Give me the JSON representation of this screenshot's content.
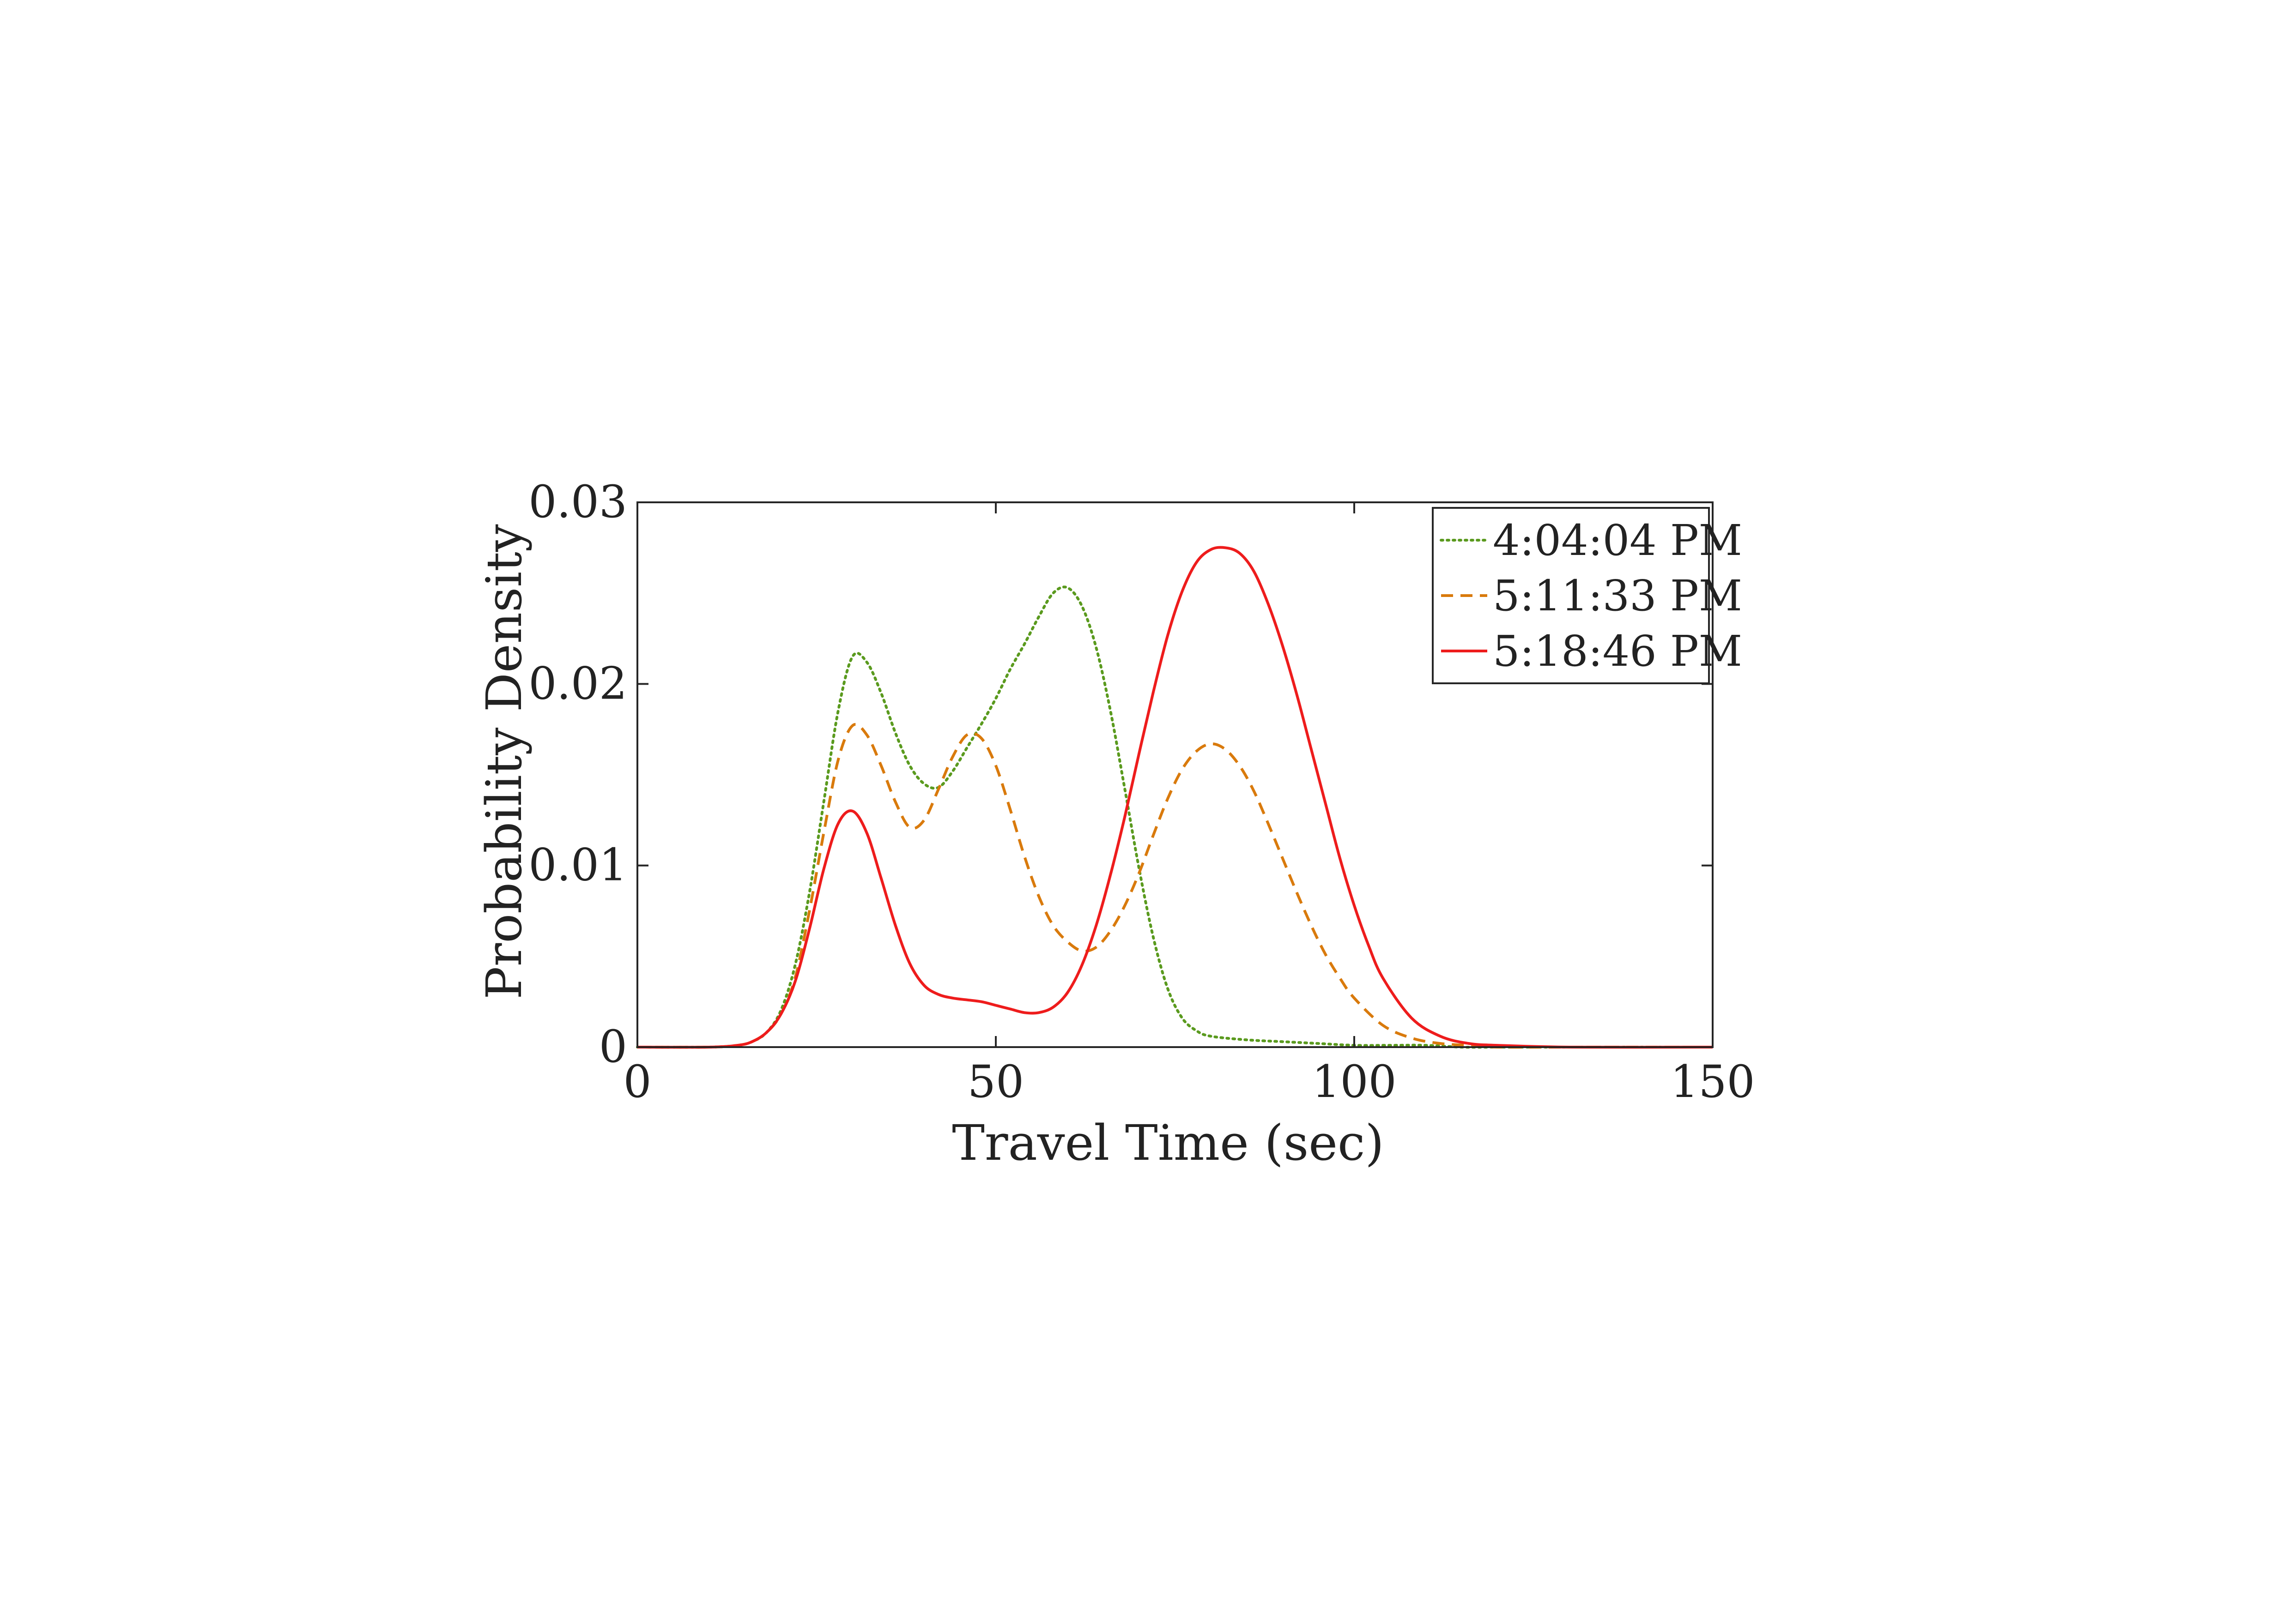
{
  "chart_data": {
    "type": "line",
    "xlabel": "Travel Time (sec)",
    "ylabel": "Probability Density",
    "xlim": [
      0,
      150
    ],
    "ylim": [
      0,
      0.03
    ],
    "xticks": [
      0,
      50,
      100,
      150
    ],
    "xtick_labels": [
      "0",
      "50",
      "100",
      "150"
    ],
    "yticks": [
      0,
      0.01,
      0.02,
      0.03
    ],
    "ytick_labels": [
      "0",
      "0.01",
      "0.02",
      "0.03"
    ],
    "grid": false,
    "legend_position": "top-right",
    "series": [
      {
        "name": "4:04:04 PM",
        "color": "#5a9a1e",
        "line_style": "dotted",
        "x": [
          0,
          10,
          14,
          16,
          18,
          20,
          22,
          24,
          26,
          28,
          30,
          32,
          34,
          36,
          38,
          40,
          42,
          44,
          46,
          48,
          50,
          52,
          54,
          56,
          58,
          60,
          62,
          64,
          66,
          68,
          70,
          72,
          74,
          76,
          78,
          80,
          85,
          90,
          95,
          100,
          105,
          110,
          115,
          120,
          130,
          150
        ],
        "y": [
          0,
          0,
          0.0001,
          0.0003,
          0.0008,
          0.002,
          0.0045,
          0.0085,
          0.0135,
          0.0185,
          0.0215,
          0.0212,
          0.0195,
          0.0173,
          0.0155,
          0.0145,
          0.0143,
          0.0152,
          0.0165,
          0.0178,
          0.0192,
          0.0208,
          0.0222,
          0.0237,
          0.025,
          0.0253,
          0.0243,
          0.022,
          0.0185,
          0.0142,
          0.0098,
          0.006,
          0.0032,
          0.0016,
          0.0009,
          0.0006,
          0.0004,
          0.0003,
          0.0002,
          0.0001,
          0.0001,
          0.0001,
          0,
          0,
          0,
          0
        ]
      },
      {
        "name": "5:11:33 PM",
        "color": "#d97a0c",
        "line_style": "dashed",
        "x": [
          0,
          10,
          14,
          16,
          18,
          20,
          22,
          24,
          26,
          28,
          30,
          32,
          34,
          36,
          38,
          40,
          42,
          44,
          46,
          48,
          50,
          52,
          54,
          56,
          58,
          60,
          62,
          64,
          66,
          68,
          70,
          72,
          74,
          76,
          78,
          80,
          82,
          84,
          86,
          88,
          90,
          92,
          94,
          96,
          98,
          100,
          104,
          108,
          112,
          116,
          120,
          130,
          150
        ],
        "y": [
          0,
          0,
          0.0001,
          0.0003,
          0.0008,
          0.0018,
          0.0038,
          0.0075,
          0.0118,
          0.0158,
          0.0177,
          0.0172,
          0.0155,
          0.0135,
          0.0121,
          0.0125,
          0.0142,
          0.016,
          0.0172,
          0.017,
          0.0155,
          0.0131,
          0.0105,
          0.0083,
          0.0067,
          0.0058,
          0.0053,
          0.0055,
          0.0064,
          0.0078,
          0.0096,
          0.0117,
          0.0137,
          0.0153,
          0.0163,
          0.0167,
          0.0164,
          0.0155,
          0.0141,
          0.0123,
          0.0104,
          0.0085,
          0.0067,
          0.0051,
          0.0038,
          0.0027,
          0.0012,
          0.0005,
          0.0002,
          0.0001,
          0,
          0,
          0
        ]
      },
      {
        "name": "5:18:46 PM",
        "color": "#ee1c1c",
        "line_style": "solid",
        "x": [
          0,
          10,
          14,
          16,
          18,
          20,
          22,
          24,
          26,
          28,
          30,
          32,
          34,
          36,
          38,
          40,
          42,
          44,
          46,
          48,
          50,
          52,
          54,
          56,
          58,
          60,
          62,
          64,
          66,
          68,
          70,
          72,
          74,
          76,
          78,
          80,
          82,
          84,
          86,
          88,
          90,
          92,
          94,
          96,
          98,
          100,
          102,
          104,
          108,
          112,
          116,
          120,
          130,
          150
        ],
        "y": [
          0,
          0,
          0.0001,
          0.0003,
          0.0008,
          0.0018,
          0.0036,
          0.0065,
          0.0098,
          0.0123,
          0.013,
          0.0118,
          0.0093,
          0.0067,
          0.0046,
          0.0034,
          0.0029,
          0.0027,
          0.0026,
          0.0025,
          0.0023,
          0.0021,
          0.0019,
          0.0019,
          0.0022,
          0.003,
          0.0045,
          0.0067,
          0.0095,
          0.0127,
          0.0162,
          0.0196,
          0.0227,
          0.0251,
          0.0267,
          0.0274,
          0.0275,
          0.0272,
          0.0262,
          0.0244,
          0.0221,
          0.0194,
          0.0164,
          0.0134,
          0.0104,
          0.0078,
          0.0056,
          0.0038,
          0.0016,
          0.0006,
          0.0002,
          0.0001,
          0,
          0
        ]
      }
    ]
  }
}
